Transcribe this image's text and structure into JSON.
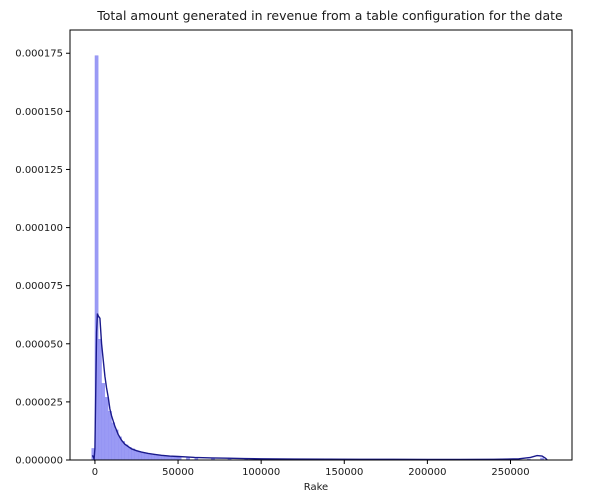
{
  "chart_data": {
    "type": "histogram",
    "title": "Total amount generated in revenue from a table configuration for the date",
    "xlabel": "Rake",
    "ylabel": "",
    "xlim": [
      -15000,
      287000
    ],
    "ylim": [
      0,
      0.000185
    ],
    "x_ticks": [
      0,
      50000,
      100000,
      150000,
      200000,
      250000
    ],
    "y_ticks": [
      0.0,
      2.5e-05,
      5e-05,
      7.5e-05,
      0.0001,
      0.000125,
      0.00015,
      0.000175
    ],
    "x_tick_labels": [
      "0",
      "50000",
      "100000",
      "150000",
      "200000",
      "250000"
    ],
    "y_tick_labels": [
      "0.000000",
      "0.000025",
      "0.000050",
      "0.000075",
      "0.000100",
      "0.000125",
      "0.000150",
      "0.000175"
    ],
    "grid": false,
    "histogram": {
      "bin_width": 2000,
      "bins": [
        {
          "x0": -2000,
          "density": 5e-06
        },
        {
          "x0": 0,
          "density": 0.000174
        },
        {
          "x0": 2000,
          "density": 5.2e-05
        },
        {
          "x0": 4000,
          "density": 3.3e-05
        },
        {
          "x0": 6000,
          "density": 2.7e-05
        },
        {
          "x0": 8000,
          "density": 2.1e-05
        },
        {
          "x0": 10000,
          "density": 1.6e-05
        },
        {
          "x0": 12000,
          "density": 1.3e-05
        },
        {
          "x0": 14000,
          "density": 1e-05
        },
        {
          "x0": 16000,
          "density": 8e-06
        },
        {
          "x0": 18000,
          "density": 6.5e-06
        },
        {
          "x0": 20000,
          "density": 5.5e-06
        },
        {
          "x0": 22000,
          "density": 4.8e-06
        },
        {
          "x0": 24000,
          "density": 4e-06
        },
        {
          "x0": 26000,
          "density": 3.5e-06
        },
        {
          "x0": 28000,
          "density": 3e-06
        },
        {
          "x0": 30000,
          "density": 2.7e-06
        },
        {
          "x0": 32000,
          "density": 2.4e-06
        },
        {
          "x0": 34000,
          "density": 2.2e-06
        },
        {
          "x0": 36000,
          "density": 2e-06
        },
        {
          "x0": 38000,
          "density": 1.8e-06
        },
        {
          "x0": 40000,
          "density": 1.7e-06
        },
        {
          "x0": 42000,
          "density": 1.6e-06
        },
        {
          "x0": 44000,
          "density": 1.5e-06
        },
        {
          "x0": 46000,
          "density": 1.4e-06
        },
        {
          "x0": 48000,
          "density": 1.3e-06
        },
        {
          "x0": 50000,
          "density": 1.2e-06
        },
        {
          "x0": 55000,
          "density": 1e-06
        },
        {
          "x0": 60000,
          "density": 9e-07
        },
        {
          "x0": 70000,
          "density": 7e-07
        },
        {
          "x0": 80000,
          "density": 6e-07
        },
        {
          "x0": 90000,
          "density": 5e-07
        },
        {
          "x0": 100000,
          "density": 4e-07
        },
        {
          "x0": 120000,
          "density": 4e-07
        },
        {
          "x0": 140000,
          "density": 3e-07
        },
        {
          "x0": 160000,
          "density": 3e-07
        },
        {
          "x0": 180000,
          "density": 3e-07
        },
        {
          "x0": 200000,
          "density": 2e-07
        },
        {
          "x0": 230000,
          "density": 2e-07
        },
        {
          "x0": 260000,
          "density": 4e-07
        },
        {
          "x0": 268000,
          "density": 9e-07
        }
      ]
    },
    "kde": {
      "x": [
        -1500,
        -500,
        0,
        500,
        1000,
        1500,
        2000,
        3000,
        4000,
        5000,
        6000,
        7000,
        8000,
        9000,
        10000,
        12000,
        14000,
        16000,
        18000,
        20000,
        22000,
        25000,
        28000,
        32000,
        36000,
        40000,
        45000,
        50000,
        55000,
        60000,
        70000,
        80000,
        90000,
        100000,
        120000,
        140000,
        160000,
        180000,
        200000,
        220000,
        240000,
        255000,
        262000,
        266000,
        269000,
        271000,
        272000
      ],
      "y": [
        2e-06,
        5e-07,
        5e-06,
        3e-05,
        5.5e-05,
        6.3e-05,
        6.2e-05,
        6.1e-05,
        5e-05,
        4.3e-05,
        3.6e-05,
        3.1e-05,
        2.7e-05,
        2.2e-05,
        1.9e-05,
        1.45e-05,
        1.1e-05,
        8.5e-06,
        6.8e-06,
        5.8e-06,
        4.8e-06,
        4e-06,
        3.4e-06,
        2.8e-06,
        2.4e-06,
        2e-06,
        1.7e-06,
        1.5e-06,
        1.3e-06,
        1.1e-06,
        9e-07,
        8e-07,
        6e-07,
        5e-07,
        4e-07,
        3.5e-07,
        3e-07,
        3e-07,
        2.5e-07,
        2.5e-07,
        3e-07,
        5e-07,
        1.1e-06,
        1.9e-06,
        1.7e-06,
        8e-07,
        1e-07
      ]
    },
    "colors": {
      "bars": "#9a9af5",
      "bar_edge": "#8a8af0",
      "kde_line": "#1a1a8c",
      "axes": "#000000",
      "background": "#ffffff"
    }
  }
}
